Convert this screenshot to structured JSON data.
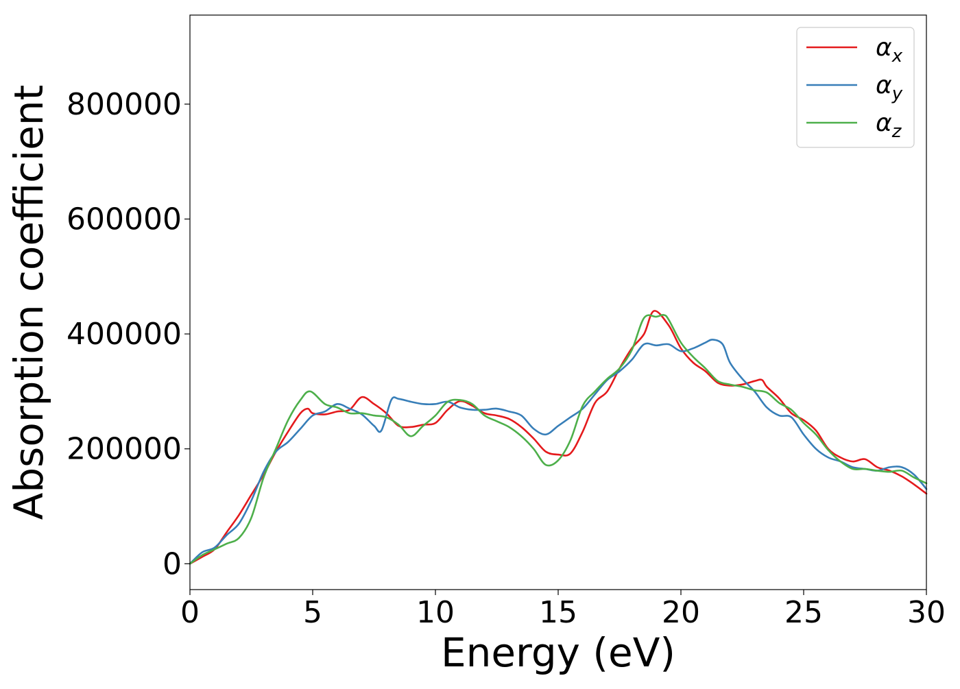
{
  "chart_data": {
    "type": "line",
    "xlabel": "Energy (eV)",
    "ylabel": "Absorption coefficient",
    "xlim": [
      0,
      30
    ],
    "ylim": [
      -45000,
      955000
    ],
    "xticks": [
      0,
      5,
      10,
      15,
      20,
      25,
      30
    ],
    "yticks": [
      0,
      200000,
      400000,
      600000,
      800000
    ],
    "grid": false,
    "legend_position": "top-right",
    "series": [
      {
        "name": "α_x",
        "legend_main": "α",
        "legend_sub": "x",
        "color": "#e41a1c",
        "x": [
          0,
          0.5,
          1,
          1.5,
          2,
          2.5,
          3,
          3.5,
          4,
          4.5,
          4.8,
          5,
          5.5,
          6,
          6.5,
          7,
          7.5,
          8,
          8.5,
          9,
          9.5,
          10,
          10.5,
          11,
          11.5,
          12,
          12.5,
          13,
          13.5,
          14,
          14.5,
          15,
          15.5,
          16,
          16.5,
          17,
          17.5,
          18,
          18.5,
          18.9,
          19.5,
          20,
          20.5,
          21,
          21.5,
          22,
          22.5,
          23,
          23.3,
          23.5,
          24,
          24.5,
          25,
          25.5,
          26,
          26.5,
          27,
          27.5,
          28,
          28.5,
          29,
          29.5,
          30
        ],
        "y": [
          0,
          12000,
          25000,
          55000,
          85000,
          120000,
          155000,
          195000,
          230000,
          262000,
          270000,
          262000,
          260000,
          265000,
          268000,
          290000,
          278000,
          262000,
          240000,
          238000,
          242000,
          245000,
          268000,
          283000,
          275000,
          262000,
          258000,
          252000,
          238000,
          218000,
          195000,
          190000,
          192000,
          230000,
          280000,
          300000,
          340000,
          375000,
          400000,
          440000,
          415000,
          375000,
          350000,
          335000,
          315000,
          310000,
          312000,
          318000,
          320000,
          308000,
          288000,
          262000,
          250000,
          232000,
          200000,
          185000,
          178000,
          182000,
          168000,
          162000,
          152000,
          138000,
          122000
        ]
      },
      {
        "name": "α_y",
        "legend_main": "α",
        "legend_sub": "y",
        "color": "#377eb8",
        "x": [
          0,
          0.5,
          1,
          1.5,
          2,
          2.5,
          3,
          3.5,
          4,
          4.5,
          5,
          5.5,
          6,
          6.5,
          7,
          7.5,
          7.8,
          8.2,
          8.5,
          9,
          9.5,
          10,
          10.5,
          11,
          11.5,
          12,
          12.5,
          13,
          13.5,
          14,
          14.5,
          15,
          15.5,
          16,
          16.5,
          17,
          17.5,
          18,
          18.5,
          19,
          19.5,
          20,
          20.5,
          21,
          21.3,
          21.7,
          22,
          22.5,
          23,
          23.5,
          24,
          24.5,
          25,
          25.5,
          26,
          26.5,
          27,
          27.5,
          28,
          28.5,
          29,
          29.5,
          30
        ],
        "y": [
          0,
          20000,
          28000,
          50000,
          70000,
          110000,
          160000,
          195000,
          212000,
          235000,
          258000,
          265000,
          278000,
          270000,
          260000,
          240000,
          232000,
          285000,
          287000,
          282000,
          278000,
          278000,
          282000,
          272000,
          268000,
          268000,
          270000,
          265000,
          258000,
          235000,
          225000,
          240000,
          255000,
          270000,
          295000,
          320000,
          335000,
          355000,
          382000,
          380000,
          382000,
          370000,
          375000,
          385000,
          390000,
          382000,
          350000,
          322000,
          300000,
          272000,
          258000,
          255000,
          225000,
          200000,
          185000,
          178000,
          168000,
          165000,
          162000,
          168000,
          168000,
          155000,
          130000
        ]
      },
      {
        "name": "α_z",
        "legend_main": "α",
        "legend_sub": "z",
        "color": "#4daf4a",
        "x": [
          0,
          0.5,
          1,
          1.5,
          2,
          2.5,
          3,
          3.5,
          4,
          4.5,
          4.9,
          5.5,
          6,
          6.5,
          7,
          7.5,
          8,
          8.5,
          9,
          9.5,
          10,
          10.5,
          11,
          11.5,
          12,
          12.5,
          13,
          13.5,
          14,
          14.5,
          15,
          15.5,
          16,
          16.5,
          17,
          17.5,
          18,
          18.5,
          19,
          19.3,
          19.5,
          20,
          20.5,
          21,
          21.5,
          22,
          22.5,
          23,
          23.5,
          24,
          24.5,
          25,
          25.5,
          26,
          26.5,
          27,
          27.5,
          28,
          28.5,
          29,
          29.5,
          30
        ],
        "y": [
          0,
          15000,
          25000,
          35000,
          45000,
          80000,
          150000,
          200000,
          250000,
          285000,
          300000,
          278000,
          272000,
          262000,
          262000,
          258000,
          255000,
          242000,
          222000,
          240000,
          258000,
          282000,
          285000,
          278000,
          258000,
          248000,
          238000,
          222000,
          200000,
          172000,
          180000,
          215000,
          275000,
          300000,
          322000,
          340000,
          372000,
          428000,
          430000,
          433000,
          425000,
          385000,
          360000,
          340000,
          318000,
          312000,
          308000,
          302000,
          298000,
          280000,
          268000,
          245000,
          225000,
          198000,
          178000,
          165000,
          165000,
          162000,
          160000,
          162000,
          150000,
          140000
        ]
      }
    ]
  }
}
